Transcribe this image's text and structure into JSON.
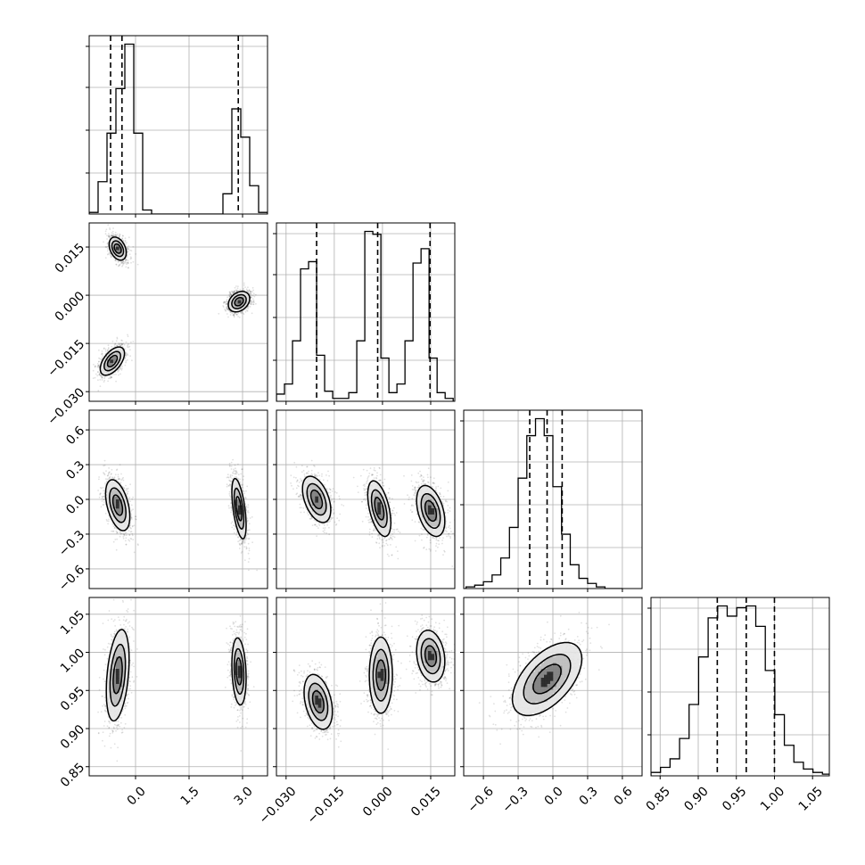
{
  "chart_data": {
    "type": "scatter",
    "title": "",
    "grid": true,
    "parameters": [
      {
        "name": "p0",
        "label": "",
        "range": [
          -1.3,
          3.7
        ],
        "ticks": [
          0.0,
          1.5,
          3.0
        ],
        "tick_labels": [
          "0.0",
          "1.5",
          "3.0"
        ],
        "show_y_ticks": false
      },
      {
        "name": "p1",
        "label": "",
        "range": [
          -0.033,
          0.0225
        ],
        "ticks": [
          -0.03,
          -0.015,
          0.0,
          0.015
        ],
        "tick_labels": [
          "−0.030",
          "−0.015",
          "0.000",
          "0.015"
        ],
        "show_y_ticks": true
      },
      {
        "name": "p2",
        "label": "",
        "range": [
          -0.77,
          0.77
        ],
        "ticks": [
          -0.6,
          -0.3,
          0.0,
          0.3,
          0.6
        ],
        "tick_labels": [
          "−0.6",
          "−0.3",
          "0.0",
          "0.3",
          "0.6"
        ],
        "show_y_ticks": true
      },
      {
        "name": "p3",
        "label": "",
        "range": [
          0.838,
          1.072
        ],
        "ticks": [
          0.85,
          0.9,
          0.95,
          1.0,
          1.05
        ],
        "tick_labels": [
          "0.85",
          "0.90",
          "0.95",
          "1.00",
          "1.05"
        ],
        "show_y_ticks": true
      }
    ],
    "histograms": [
      {
        "param": "p0",
        "bins": [
          -1.3,
          -1.05,
          -0.8,
          -0.55,
          -0.3,
          -0.05,
          0.2,
          0.45,
          2.45,
          2.7,
          2.95,
          3.2,
          3.45,
          3.7
        ],
        "counts": [
          0.02,
          0.4,
          1.0,
          1.55,
          2.1,
          1.0,
          0.05,
          0.0,
          0.25,
          1.3,
          0.95,
          0.35,
          0.02
        ],
        "quantiles": [
          -0.7,
          -0.38,
          2.88
        ]
      },
      {
        "param": "p1",
        "bins": [
          -0.033,
          -0.0305,
          -0.028,
          -0.0255,
          -0.023,
          -0.0205,
          -0.018,
          -0.0155,
          -0.013,
          -0.0105,
          -0.008,
          -0.0055,
          -0.003,
          -0.0005,
          0.002,
          0.0045,
          0.007,
          0.0095,
          0.012,
          0.0145,
          0.017,
          0.0195,
          0.022
        ],
        "counts": [
          0.05,
          0.12,
          0.42,
          0.92,
          0.97,
          0.32,
          0.07,
          0.02,
          0.02,
          0.06,
          0.42,
          1.18,
          1.16,
          0.3,
          0.06,
          0.12,
          0.42,
          0.96,
          1.06,
          0.3,
          0.06,
          0.02
        ],
        "quantiles": [
          -0.0205,
          -0.0015,
          0.0148
        ]
      },
      {
        "param": "p2",
        "bins": [
          -0.75,
          -0.675,
          -0.6,
          -0.525,
          -0.45,
          -0.375,
          -0.3,
          -0.225,
          -0.15,
          -0.075,
          0.0,
          0.075,
          0.15,
          0.225,
          0.3,
          0.375,
          0.45,
          0.525,
          0.6
        ],
        "counts": [
          0.01,
          0.02,
          0.04,
          0.08,
          0.18,
          0.36,
          0.65,
          0.9,
          1.0,
          0.9,
          0.6,
          0.32,
          0.14,
          0.06,
          0.03,
          0.01,
          0.0,
          0.0
        ],
        "quantiles": [
          -0.2,
          -0.05,
          0.08
        ]
      },
      {
        "param": "p3",
        "bins": [
          0.838,
          0.8505,
          0.863,
          0.8755,
          0.888,
          0.9005,
          0.913,
          0.9255,
          0.938,
          0.9505,
          0.963,
          0.9755,
          0.988,
          1.0005,
          1.013,
          1.0255,
          1.038,
          1.0505,
          1.063,
          1.0755
        ],
        "counts": [
          0.02,
          0.05,
          0.1,
          0.22,
          0.42,
          0.7,
          0.93,
          1.0,
          0.94,
          0.99,
          1.0,
          0.88,
          0.62,
          0.36,
          0.18,
          0.08,
          0.04,
          0.02,
          0.01
        ],
        "quantiles": [
          0.925,
          0.963,
          1.0
        ]
      }
    ],
    "pairs": [
      {
        "x_param": "p0",
        "y_param": "p1",
        "clusters": [
          {
            "cx": -0.5,
            "cy": 0.0145,
            "sx": 0.12,
            "sy": 0.0018,
            "rho": -0.35
          },
          {
            "cx": 2.9,
            "cy": -0.002,
            "sx": 0.15,
            "sy": 0.0016,
            "rho": 0.3
          },
          {
            "cx": -0.65,
            "cy": -0.0205,
            "sx": 0.17,
            "sy": 0.0022,
            "rho": 0.55
          }
        ]
      },
      {
        "x_param": "p0",
        "y_param": "p2",
        "clusters": [
          {
            "cx": -0.5,
            "cy": -0.05,
            "sx": 0.17,
            "sy": 0.11,
            "rho": -0.45
          },
          {
            "cx": 2.9,
            "cy": -0.08,
            "sx": 0.1,
            "sy": 0.13,
            "rho": -0.55
          }
        ]
      },
      {
        "x_param": "p1",
        "y_param": "p2",
        "clusters": [
          {
            "cx": -0.0205,
            "cy": 0.0,
            "sx": 0.0022,
            "sy": 0.1,
            "rho": -0.45
          },
          {
            "cx": -0.001,
            "cy": -0.08,
            "sx": 0.0018,
            "sy": 0.12,
            "rho": -0.5
          },
          {
            "cx": 0.015,
            "cy": -0.1,
            "sx": 0.0022,
            "sy": 0.11,
            "rho": -0.4
          }
        ]
      },
      {
        "x_param": "p0",
        "y_param": "p3",
        "clusters": [
          {
            "cx": -0.5,
            "cy": 0.97,
            "sx": 0.16,
            "sy": 0.03,
            "rho": 0.35
          },
          {
            "cx": 2.9,
            "cy": 0.975,
            "sx": 0.1,
            "sy": 0.022,
            "rho": -0.2
          }
        ]
      },
      {
        "x_param": "p1",
        "y_param": "p3",
        "clusters": [
          {
            "cx": -0.02,
            "cy": 0.935,
            "sx": 0.0022,
            "sy": 0.018,
            "rho": -0.35
          },
          {
            "cx": -0.0005,
            "cy": 0.97,
            "sx": 0.0018,
            "sy": 0.025,
            "rho": 0.0
          },
          {
            "cx": 0.015,
            "cy": 0.995,
            "sx": 0.0022,
            "sy": 0.017,
            "rho": -0.2
          }
        ]
      },
      {
        "x_param": "p2",
        "y_param": "p3",
        "clusters": [
          {
            "cx": -0.05,
            "cy": 0.965,
            "sx": 0.15,
            "sy": 0.024,
            "rho": 0.55
          }
        ]
      }
    ],
    "point_style": {
      "color": "#000000",
      "alpha": 0.12
    },
    "contour_fill": [
      "#ffffff",
      "#e6e6e6",
      "#bdbdbd",
      "#7f7f7f",
      "#262626"
    ],
    "line_color": "#000000"
  }
}
